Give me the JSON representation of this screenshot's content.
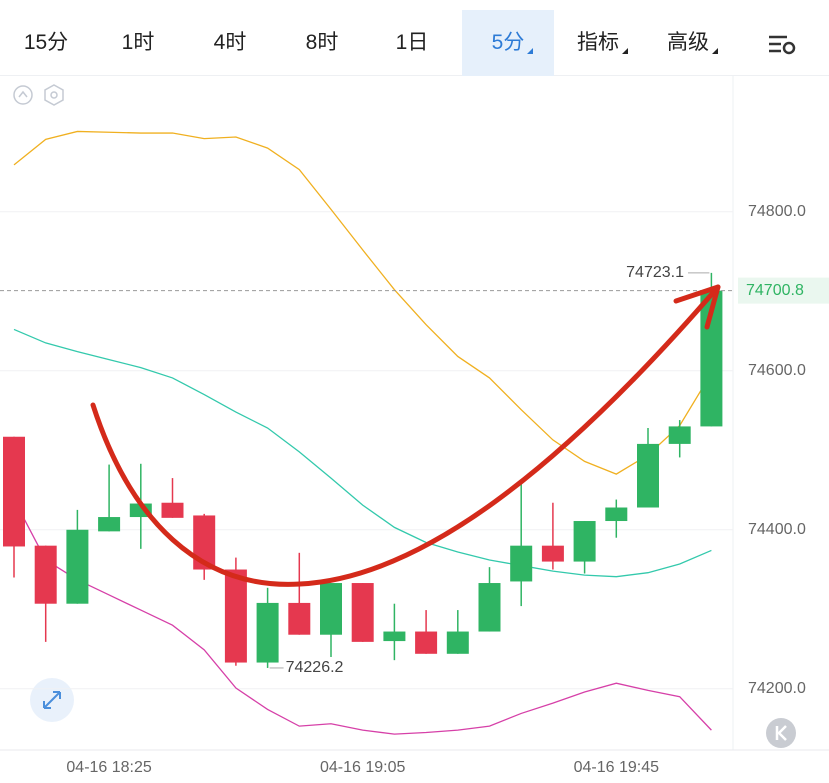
{
  "toolbar": {
    "tabs": [
      "15分",
      "1时",
      "4时",
      "8时",
      "1日",
      "5分",
      "指标",
      "高级"
    ],
    "active": 5
  },
  "chart_data": {
    "type": "candlestick",
    "categories": [
      null,
      null,
      null,
      "04-16 18:25",
      null,
      null,
      null,
      null,
      null,
      null,
      null,
      "04-16 19:05",
      null,
      null,
      null,
      null,
      null,
      null,
      null,
      "04-16 19:45",
      null,
      null,
      null
    ],
    "open": [
      74517,
      74380,
      74307,
      74398,
      74416,
      74434,
      74418,
      74350,
      74233,
      74308,
      74268,
      74333,
      74260,
      74272,
      74244,
      74272,
      74335,
      74380,
      74360,
      74411,
      74428,
      74508,
      74530
    ],
    "high": [
      74517,
      74380,
      74425,
      74482,
      74483,
      74465,
      74420,
      74365,
      74327,
      74371,
      74333,
      74333,
      74307,
      74299,
      74299,
      74353,
      74457,
      74434,
      74411,
      74438,
      74528,
      74538,
      74723.1
    ],
    "low": [
      74340,
      74259,
      74307,
      74398,
      74376,
      74415,
      74337,
      74229,
      74226.2,
      74268,
      74240,
      74259,
      74236,
      74244,
      74244,
      74272,
      74304,
      74350,
      74345,
      74390,
      74428,
      74491,
      74530
    ],
    "close": [
      74379,
      74307,
      74400,
      74416,
      74433,
      74415,
      74350,
      74233,
      74308,
      74268,
      74333,
      74259,
      74272,
      74244,
      74272,
      74333,
      74380,
      74360,
      74411,
      74428,
      74508,
      74530,
      74700.8
    ],
    "up_color": "#2fb463",
    "down_color": "#e5384f",
    "lines": [
      {
        "color": "#f0b020",
        "values": [
          74859,
          74891,
          74901,
          74900,
          74899,
          74899,
          74892,
          74894,
          74880,
          74853,
          74803,
          74752,
          74702,
          74658,
          74618,
          74591,
          74551,
          74513,
          74486,
          74470,
          74494,
          74531,
          74597
        ]
      },
      {
        "color": "#33c9ac",
        "values": [
          74652,
          74635,
          74624,
          74614,
          74604,
          74591,
          74570,
          74548,
          74528,
          74498,
          74465,
          74431,
          74403,
          74384,
          74372,
          74362,
          74355,
          74348,
          74343,
          74341,
          74346,
          74357,
          74374
        ]
      },
      {
        "color": "#d640a8",
        "values": [
          74438,
          74362,
          74337,
          74318,
          74299,
          74280,
          74249,
          74201,
          74174,
          74153,
          74156,
          74148,
          74143,
          74145,
          74148,
          74153,
          74169,
          74182,
          74196,
          74207,
          74198,
          74190,
          74148
        ]
      }
    ],
    "ylim": [
      74123,
      74972
    ],
    "yticks": [
      {
        "value": 74200,
        "label": "74200.0"
      },
      {
        "value": 74400,
        "label": "74400.0"
      },
      {
        "value": 74600,
        "label": "74600.0"
      },
      {
        "value": 74800,
        "label": "74800.0"
      }
    ],
    "grid": true
  }
}
